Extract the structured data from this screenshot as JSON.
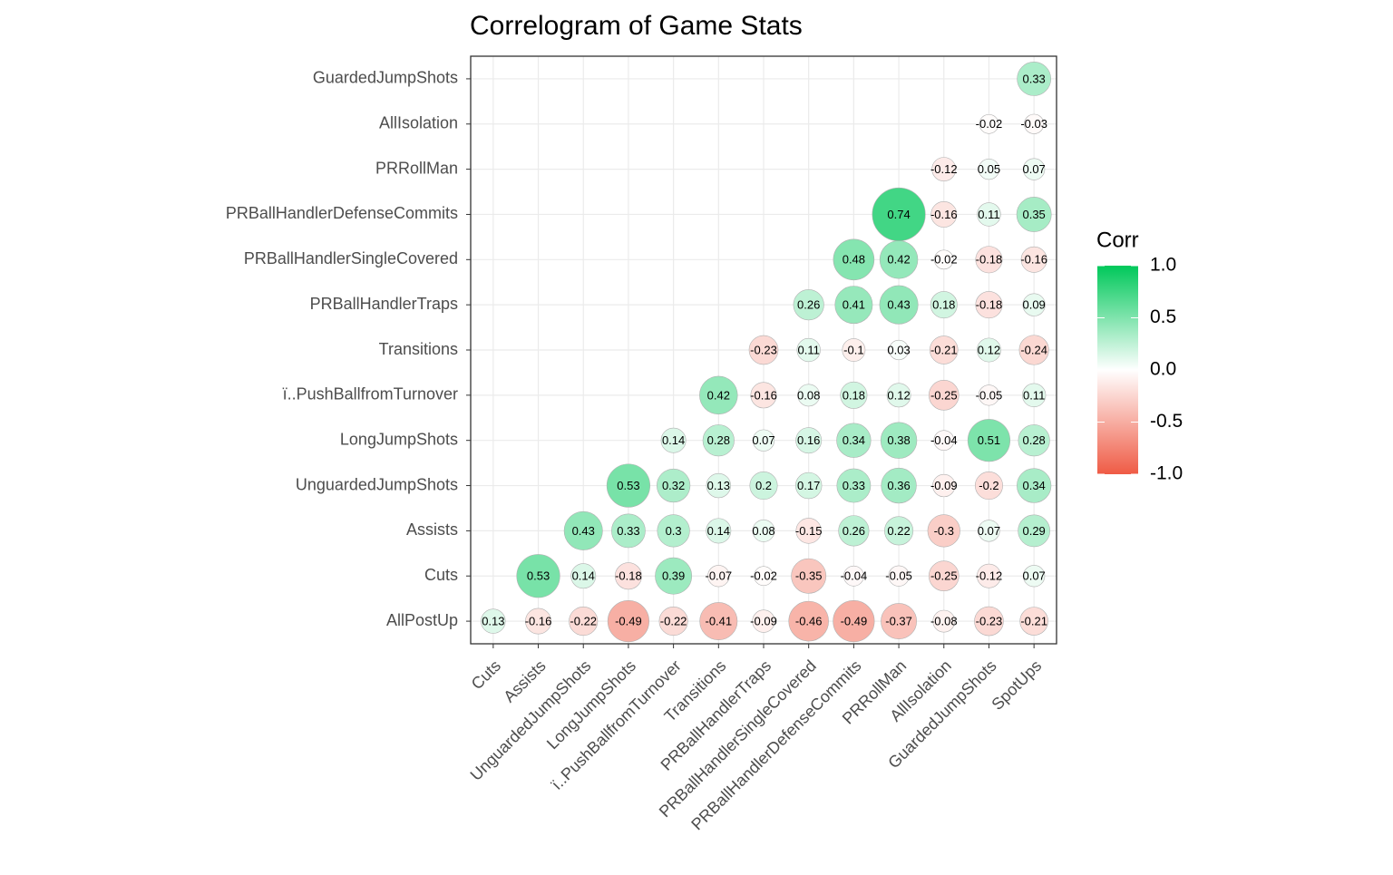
{
  "chart_data": {
    "type": "correlogram",
    "title": "Correlogram of Game Stats",
    "x_categories": [
      "Cuts",
      "Assists",
      "UnguardedJumpShots",
      "LongJumpShots",
      "ï..PushBallfromTurnover",
      "Transitions",
      "PRBallHandlerTraps",
      "PRBallHandlerSingleCovered",
      "PRBallHandlerDefenseCommits",
      "PRRollMan",
      "AllIsolation",
      "GuardedJumpShots",
      "SpotUps"
    ],
    "y_categories": [
      "AllPostUp",
      "Cuts",
      "Assists",
      "UnguardedJumpShots",
      "LongJumpShots",
      "ï..PushBallfromTurnover",
      "Transitions",
      "PRBallHandlerTraps",
      "PRBallHandlerSingleCovered",
      "PRBallHandlerDefenseCommits",
      "PRRollMan",
      "AllIsolation",
      "GuardedJumpShots"
    ],
    "matrix": [
      [
        0.13,
        -0.16,
        -0.22,
        -0.49,
        -0.22,
        -0.41,
        -0.09,
        -0.46,
        -0.49,
        -0.37,
        -0.08,
        -0.23,
        -0.21
      ],
      [
        null,
        0.53,
        0.14,
        -0.18,
        0.39,
        -0.07,
        -0.02,
        -0.35,
        -0.04,
        -0.05,
        -0.25,
        -0.12,
        0.07
      ],
      [
        null,
        null,
        0.43,
        0.33,
        0.3,
        0.14,
        0.08,
        -0.15,
        0.26,
        0.22,
        -0.3,
        0.07,
        0.29
      ],
      [
        null,
        null,
        null,
        0.53,
        0.32,
        0.13,
        0.2,
        0.17,
        0.33,
        0.36,
        -0.09,
        -0.2,
        0.34
      ],
      [
        null,
        null,
        null,
        null,
        0.14,
        0.28,
        0.07,
        0.16,
        0.34,
        0.38,
        -0.04,
        0.51,
        0.28
      ],
      [
        null,
        null,
        null,
        null,
        null,
        0.42,
        -0.16,
        0.08,
        0.18,
        0.12,
        -0.25,
        -0.05,
        0.11
      ],
      [
        null,
        null,
        null,
        null,
        null,
        null,
        -0.23,
        0.11,
        -0.1,
        0.03,
        -0.21,
        0.12,
        -0.24
      ],
      [
        null,
        null,
        null,
        null,
        null,
        null,
        null,
        0.26,
        0.41,
        0.43,
        0.18,
        -0.18,
        0.09
      ],
      [
        null,
        null,
        null,
        null,
        null,
        null,
        null,
        null,
        0.48,
        0.42,
        -0.02,
        -0.18,
        -0.16
      ],
      [
        null,
        null,
        null,
        null,
        null,
        null,
        null,
        null,
        null,
        0.74,
        -0.16,
        0.11,
        0.35
      ],
      [
        null,
        null,
        null,
        null,
        null,
        null,
        null,
        null,
        null,
        null,
        -0.12,
        0.05,
        0.07
      ],
      [
        null,
        null,
        null,
        null,
        null,
        null,
        null,
        null,
        null,
        null,
        null,
        -0.02,
        -0.03
      ],
      [
        null,
        null,
        null,
        null,
        null,
        null,
        null,
        null,
        null,
        null,
        null,
        null,
        0.33
      ]
    ],
    "legend_title": "Corr",
    "colors": {
      "low": "#ef5b45",
      "mid": "#ffffff",
      "high": "#00c85a"
    },
    "clim": [
      -1,
      1
    ],
    "cticks": [
      {
        "value": 1,
        "label": "1.0"
      },
      {
        "value": 0.5,
        "label": "0.5"
      },
      {
        "value": 0,
        "label": "0.0"
      },
      {
        "value": -0.5,
        "label": "-0.5"
      },
      {
        "value": -1,
        "label": "-1.0"
      }
    ],
    "grid": true
  }
}
